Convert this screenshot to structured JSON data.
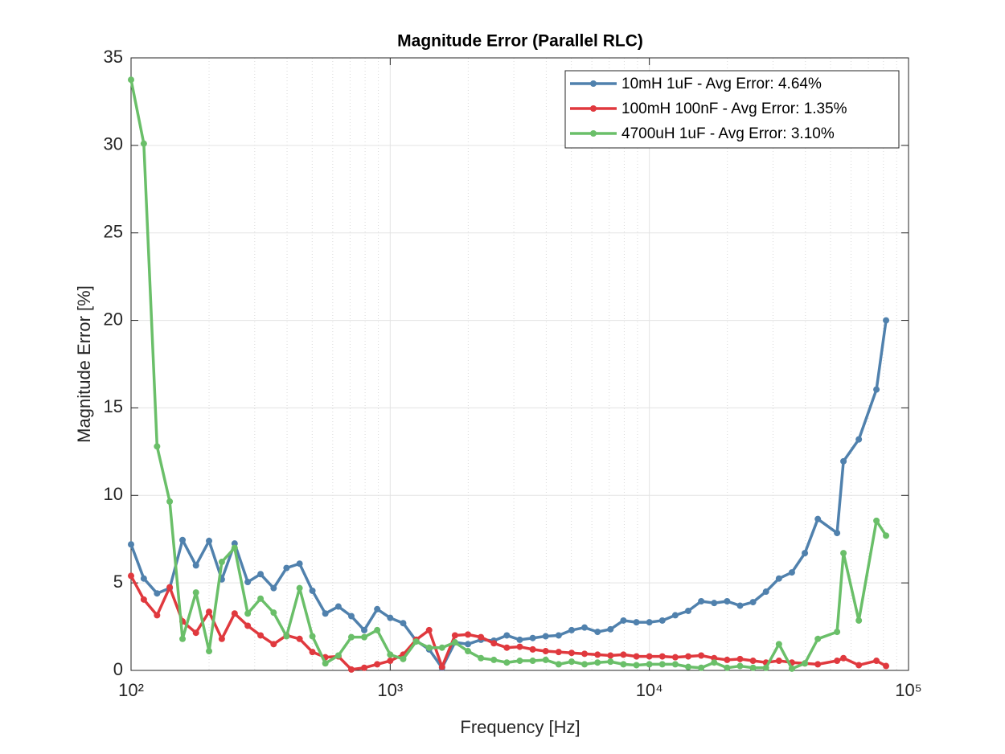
{
  "chart_data": {
    "type": "line",
    "title": "Magnitude Error (Parallel RLC)",
    "xlabel": "Frequency [Hz]",
    "ylabel": "Magnitude Error [%]",
    "xscale": "log",
    "grid": true,
    "minor_grid": true,
    "legend": "upper right",
    "xlim": [
      100,
      100000
    ],
    "xticks": [
      {
        "value": 100,
        "label": "10²"
      },
      {
        "value": 1000,
        "label": "10³"
      },
      {
        "value": 10000,
        "label": "10⁴"
      },
      {
        "value": 100000,
        "label": "10⁵"
      }
    ],
    "ylim": [
      0,
      35
    ],
    "yticks": [
      0,
      5,
      10,
      15,
      20,
      25,
      30,
      35
    ],
    "x": [
      100,
      112,
      126,
      141,
      158,
      178,
      200,
      224,
      251,
      282,
      316,
      355,
      398,
      447,
      501,
      562,
      631,
      708,
      794,
      891,
      1000,
      1122,
      1259,
      1413,
      1585,
      1778,
      1995,
      2239,
      2512,
      2818,
      3162,
      3548,
      3981,
      4467,
      5012,
      5623,
      6310,
      7079,
      7943,
      8913,
      10000,
      11220,
      12589,
      14125,
      15849,
      17783,
      19953,
      22387,
      25119,
      28184,
      31623,
      35481,
      39811,
      44668,
      53000,
      56100,
      64300,
      75200,
      81900
    ],
    "series": [
      {
        "name": "10mH 1uF - Avg Error: 4.64%",
        "color": "#5081ad",
        "values": [
          7.2,
          5.25,
          4.4,
          4.7,
          7.45,
          6.0,
          7.4,
          5.2,
          7.25,
          5.05,
          5.5,
          4.7,
          5.85,
          6.1,
          4.55,
          3.25,
          3.65,
          3.1,
          2.3,
          3.5,
          3.0,
          2.7,
          1.7,
          1.2,
          0.15,
          1.6,
          1.5,
          1.75,
          1.7,
          2.0,
          1.75,
          1.85,
          1.95,
          2.0,
          2.3,
          2.45,
          2.2,
          2.35,
          2.85,
          2.75,
          2.75,
          2.85,
          3.15,
          3.4,
          3.95,
          3.85,
          3.95,
          3.7,
          3.9,
          4.5,
          5.25,
          5.6,
          6.7,
          8.65,
          7.85,
          11.95,
          13.2,
          16.05,
          20.0
        ]
      },
      {
        "name": "100mH 100nF - Avg Error: 1.35%",
        "color": "#e0393e",
        "values": [
          5.4,
          4.05,
          3.15,
          4.75,
          2.8,
          2.15,
          3.35,
          1.8,
          3.25,
          2.55,
          2.0,
          1.5,
          2.0,
          1.8,
          1.05,
          0.75,
          0.8,
          0.05,
          0.15,
          0.35,
          0.55,
          0.9,
          1.75,
          2.3,
          0.2,
          2.0,
          2.05,
          1.9,
          1.55,
          1.3,
          1.35,
          1.2,
          1.1,
          1.05,
          1.0,
          0.95,
          0.9,
          0.85,
          0.9,
          0.8,
          0.8,
          0.8,
          0.75,
          0.8,
          0.85,
          0.7,
          0.6,
          0.65,
          0.55,
          0.45,
          0.55,
          0.45,
          0.4,
          0.35,
          0.55,
          0.7,
          0.3,
          0.55,
          0.25
        ]
      },
      {
        "name": "4700uH 1uF - Avg Error: 3.10%",
        "color": "#6abf69",
        "values": [
          33.75,
          30.1,
          12.8,
          9.65,
          1.8,
          4.45,
          1.1,
          6.2,
          7.0,
          3.25,
          4.1,
          3.3,
          1.95,
          4.7,
          1.95,
          0.4,
          0.85,
          1.9,
          1.9,
          2.3,
          0.9,
          0.65,
          1.65,
          1.3,
          1.3,
          1.6,
          1.1,
          0.7,
          0.6,
          0.45,
          0.55,
          0.55,
          0.6,
          0.35,
          0.5,
          0.35,
          0.45,
          0.5,
          0.35,
          0.3,
          0.35,
          0.35,
          0.35,
          0.2,
          0.15,
          0.45,
          0.15,
          0.25,
          0.15,
          0.15,
          1.5,
          0.1,
          0.4,
          1.8,
          2.2,
          6.7,
          2.85,
          8.55,
          7.7
        ]
      }
    ]
  }
}
